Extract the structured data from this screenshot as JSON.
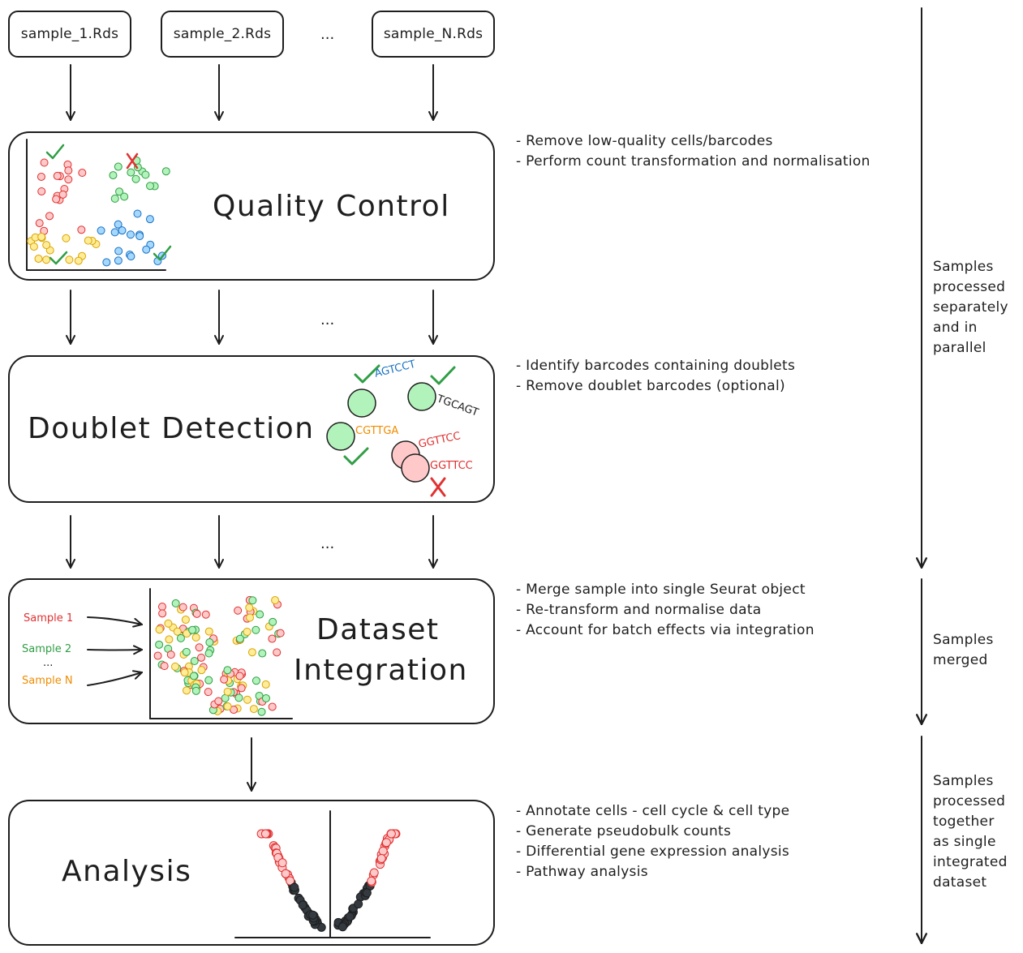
{
  "inputs": {
    "files": [
      "sample_1.Rds",
      "sample_2.Rds",
      "sample_N.Rds"
    ],
    "ellipsis": "..."
  },
  "stages": {
    "qc": {
      "title": "Quality Control",
      "notes": [
        "- Remove low-quality cells/barcodes",
        "- Perform count transformation and normalisation"
      ]
    },
    "doublet": {
      "title": "Doublet Detection",
      "notes": [
        "- Identify barcodes containing doublets",
        "- Remove doublet barcodes (optional)"
      ],
      "barcodes": [
        "AGTCCT",
        "TGCAGT",
        "CGTTGA",
        "GGTTCC",
        "GGTTCC"
      ]
    },
    "integration": {
      "title_line1": "Dataset",
      "title_line2": "Integration",
      "notes": [
        "- Merge sample into single Seurat object",
        "- Re-transform and normalise data",
        "- Account for batch effects via integration"
      ],
      "samples": [
        "Sample 1",
        "Sample 2",
        "...",
        "Sample N"
      ]
    },
    "analysis": {
      "title": "Analysis",
      "notes": [
        "- Annotate cells - cell cycle & cell type",
        "- Generate pseudobulk counts",
        "- Differential gene expression analysis",
        "- Pathway analysis"
      ]
    }
  },
  "flow_ellipsis": [
    "...",
    "..."
  ],
  "side_labels": {
    "separate": [
      "Samples",
      "processed",
      "separately",
      "and in",
      "parallel"
    ],
    "merged": [
      "Samples",
      "merged"
    ],
    "together": [
      "Samples",
      "processed",
      "together",
      "as single",
      "integrated",
      "dataset"
    ]
  },
  "colors": {
    "pink": "#ffc9c9",
    "pink_stroke": "#e03131",
    "yellow": "#ffec99",
    "yellow_stroke": "#d9a400",
    "blue": "#a5d8ff",
    "blue_stroke": "#1971c2",
    "green": "#b2f2bb",
    "green_stroke": "#2f9e44",
    "black": "#343a40",
    "check": "#2f9e44",
    "cross": "#e03131",
    "orange": "#f08c00"
  }
}
